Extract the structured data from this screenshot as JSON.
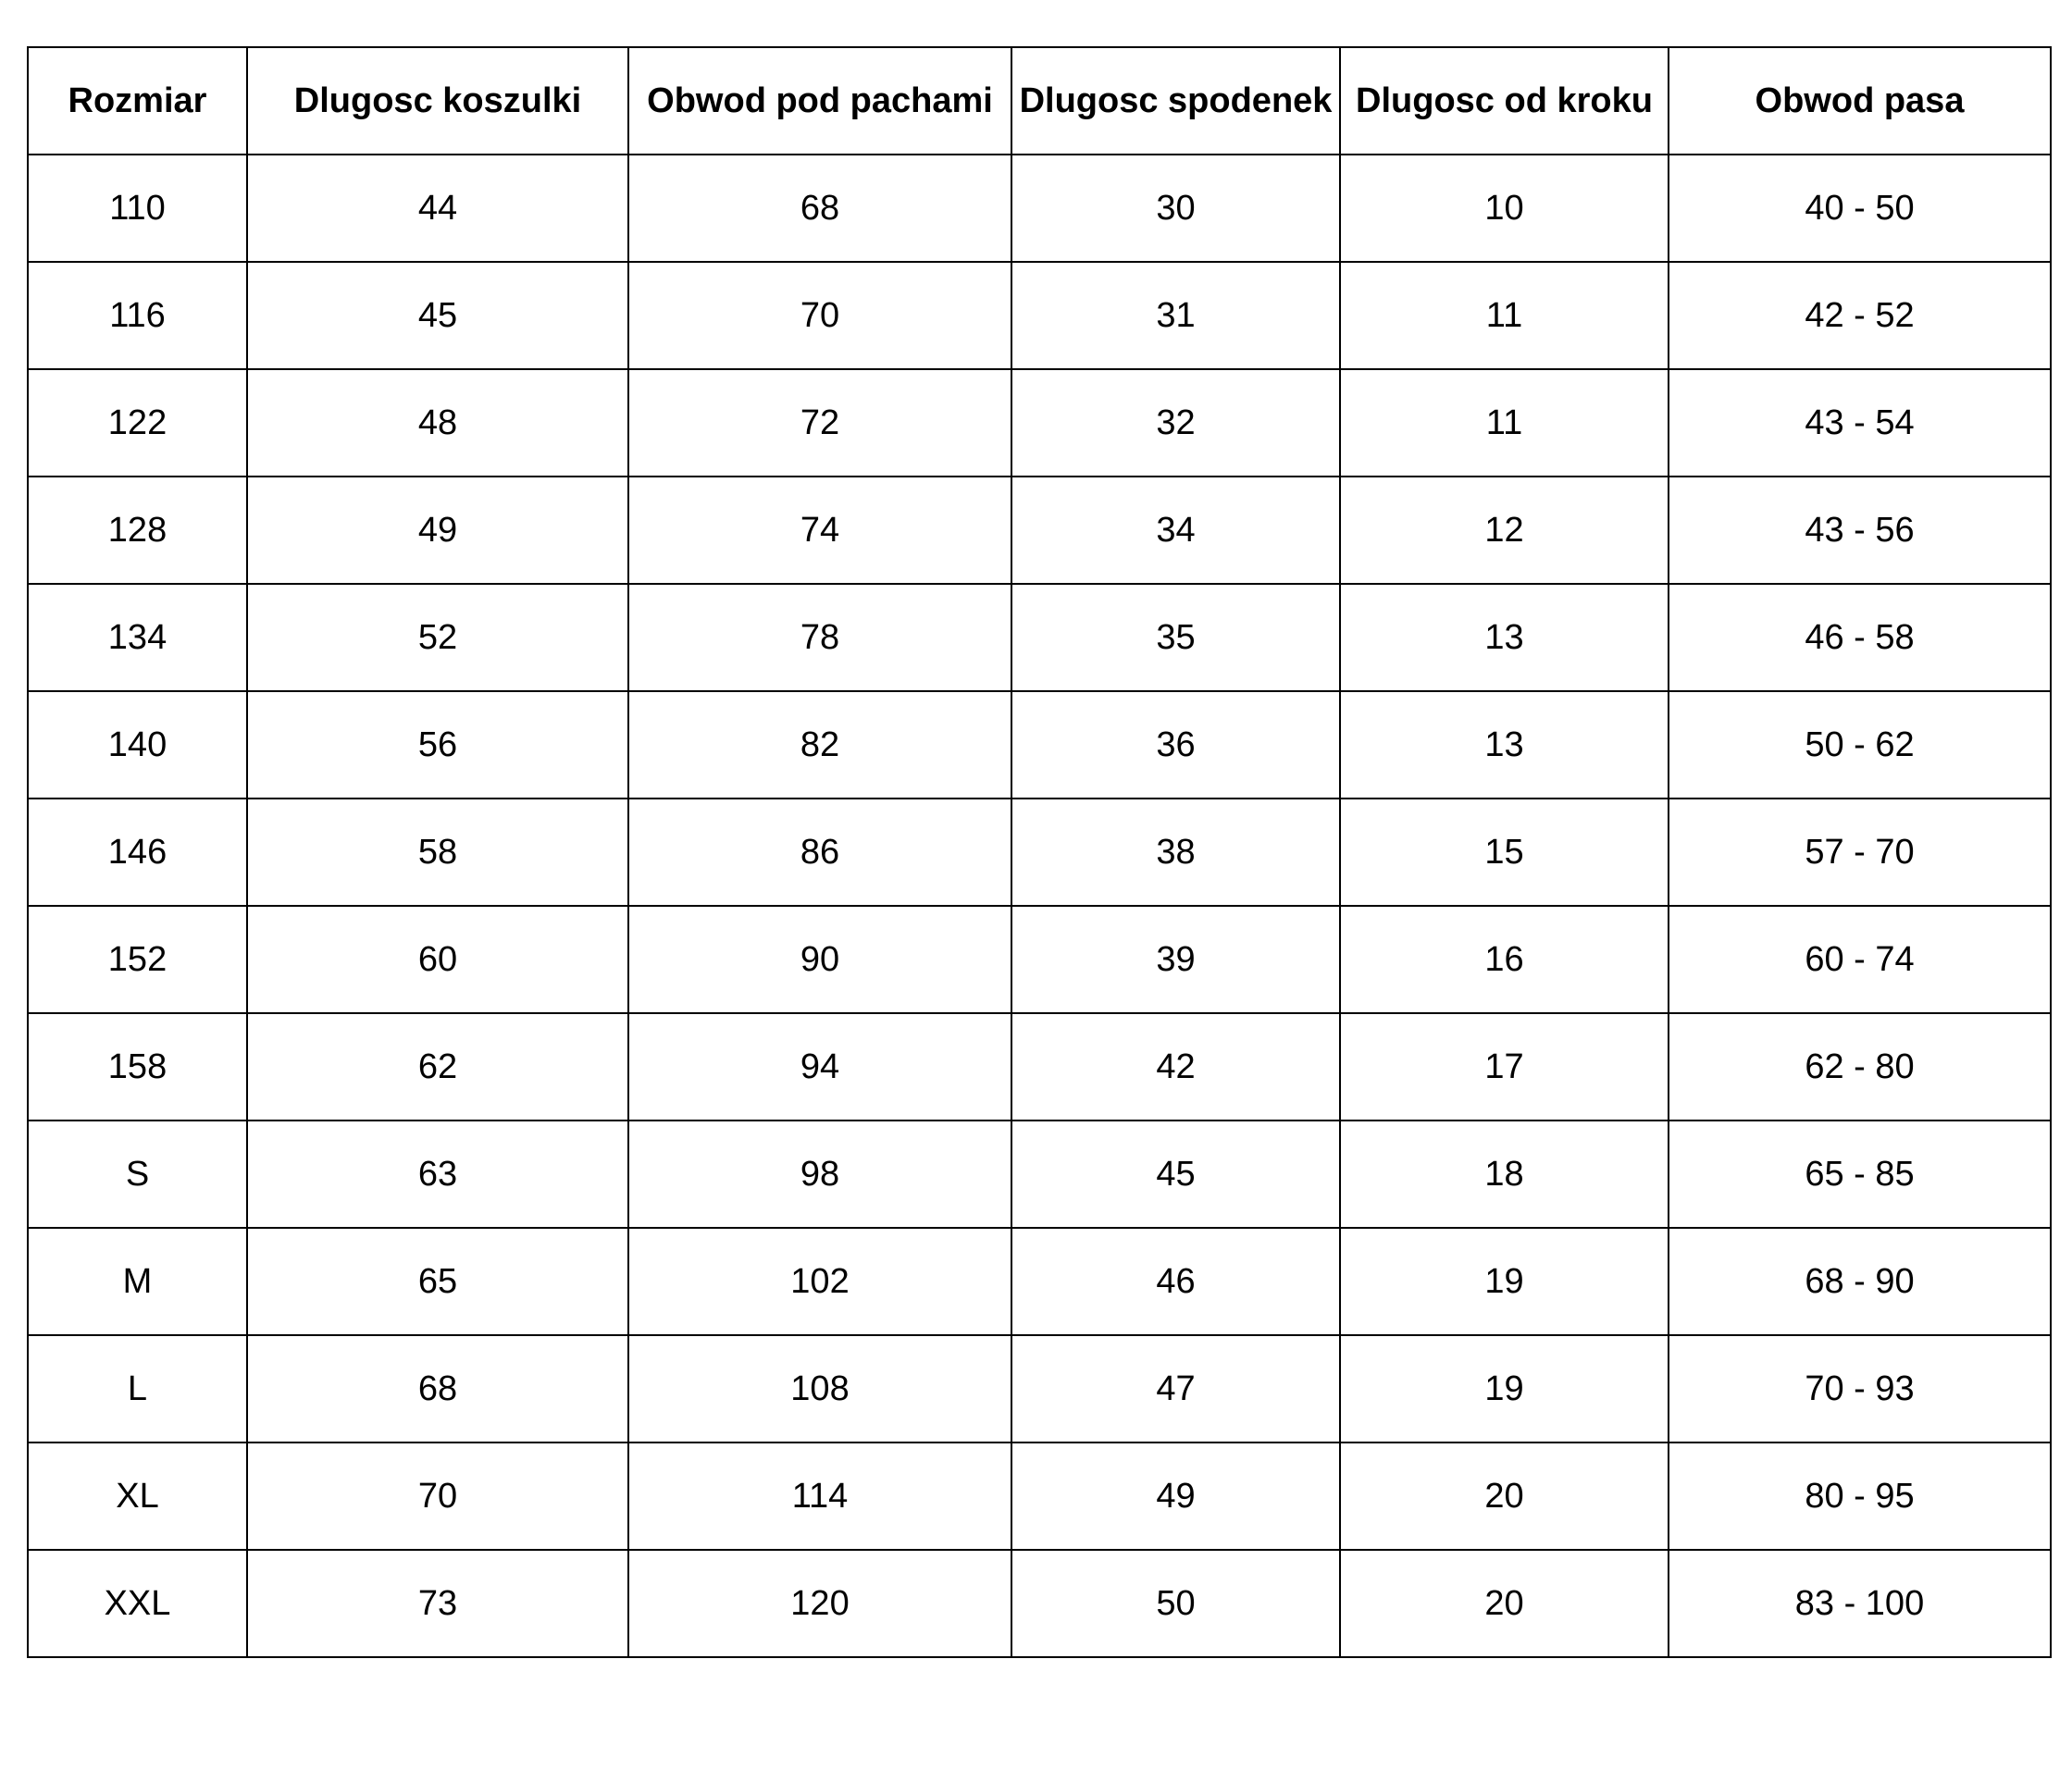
{
  "headers": [
    "Rozmiar",
    "Dlugosc koszulki",
    "Obwod pod pachami",
    "Dlugosc spodenek",
    "Dlugosc od kroku",
    "Obwod pasa"
  ],
  "rows": [
    [
      "110",
      "44",
      "68",
      "30",
      "10",
      "40 - 50"
    ],
    [
      "116",
      "45",
      "70",
      "31",
      "11",
      "42 - 52"
    ],
    [
      "122",
      "48",
      "72",
      "32",
      "11",
      "43 - 54"
    ],
    [
      "128",
      "49",
      "74",
      "34",
      "12",
      "43 - 56"
    ],
    [
      "134",
      "52",
      "78",
      "35",
      "13",
      "46 - 58"
    ],
    [
      "140",
      "56",
      "82",
      "36",
      "13",
      "50 - 62"
    ],
    [
      "146",
      "58",
      "86",
      "38",
      "15",
      "57 - 70"
    ],
    [
      "152",
      "60",
      "90",
      "39",
      "16",
      "60 - 74"
    ],
    [
      "158",
      "62",
      "94",
      "42",
      "17",
      "62 - 80"
    ],
    [
      "S",
      "63",
      "98",
      "45",
      "18",
      "65 - 85"
    ],
    [
      "M",
      "65",
      "102",
      "46",
      "19",
      "68 - 90"
    ],
    [
      "L",
      "68",
      "108",
      "47",
      "19",
      "70 - 93"
    ],
    [
      "XL",
      "70",
      "114",
      "49",
      "20",
      "80 - 95"
    ],
    [
      "XXL",
      "73",
      "120",
      "50",
      "20",
      "83 - 100"
    ]
  ]
}
